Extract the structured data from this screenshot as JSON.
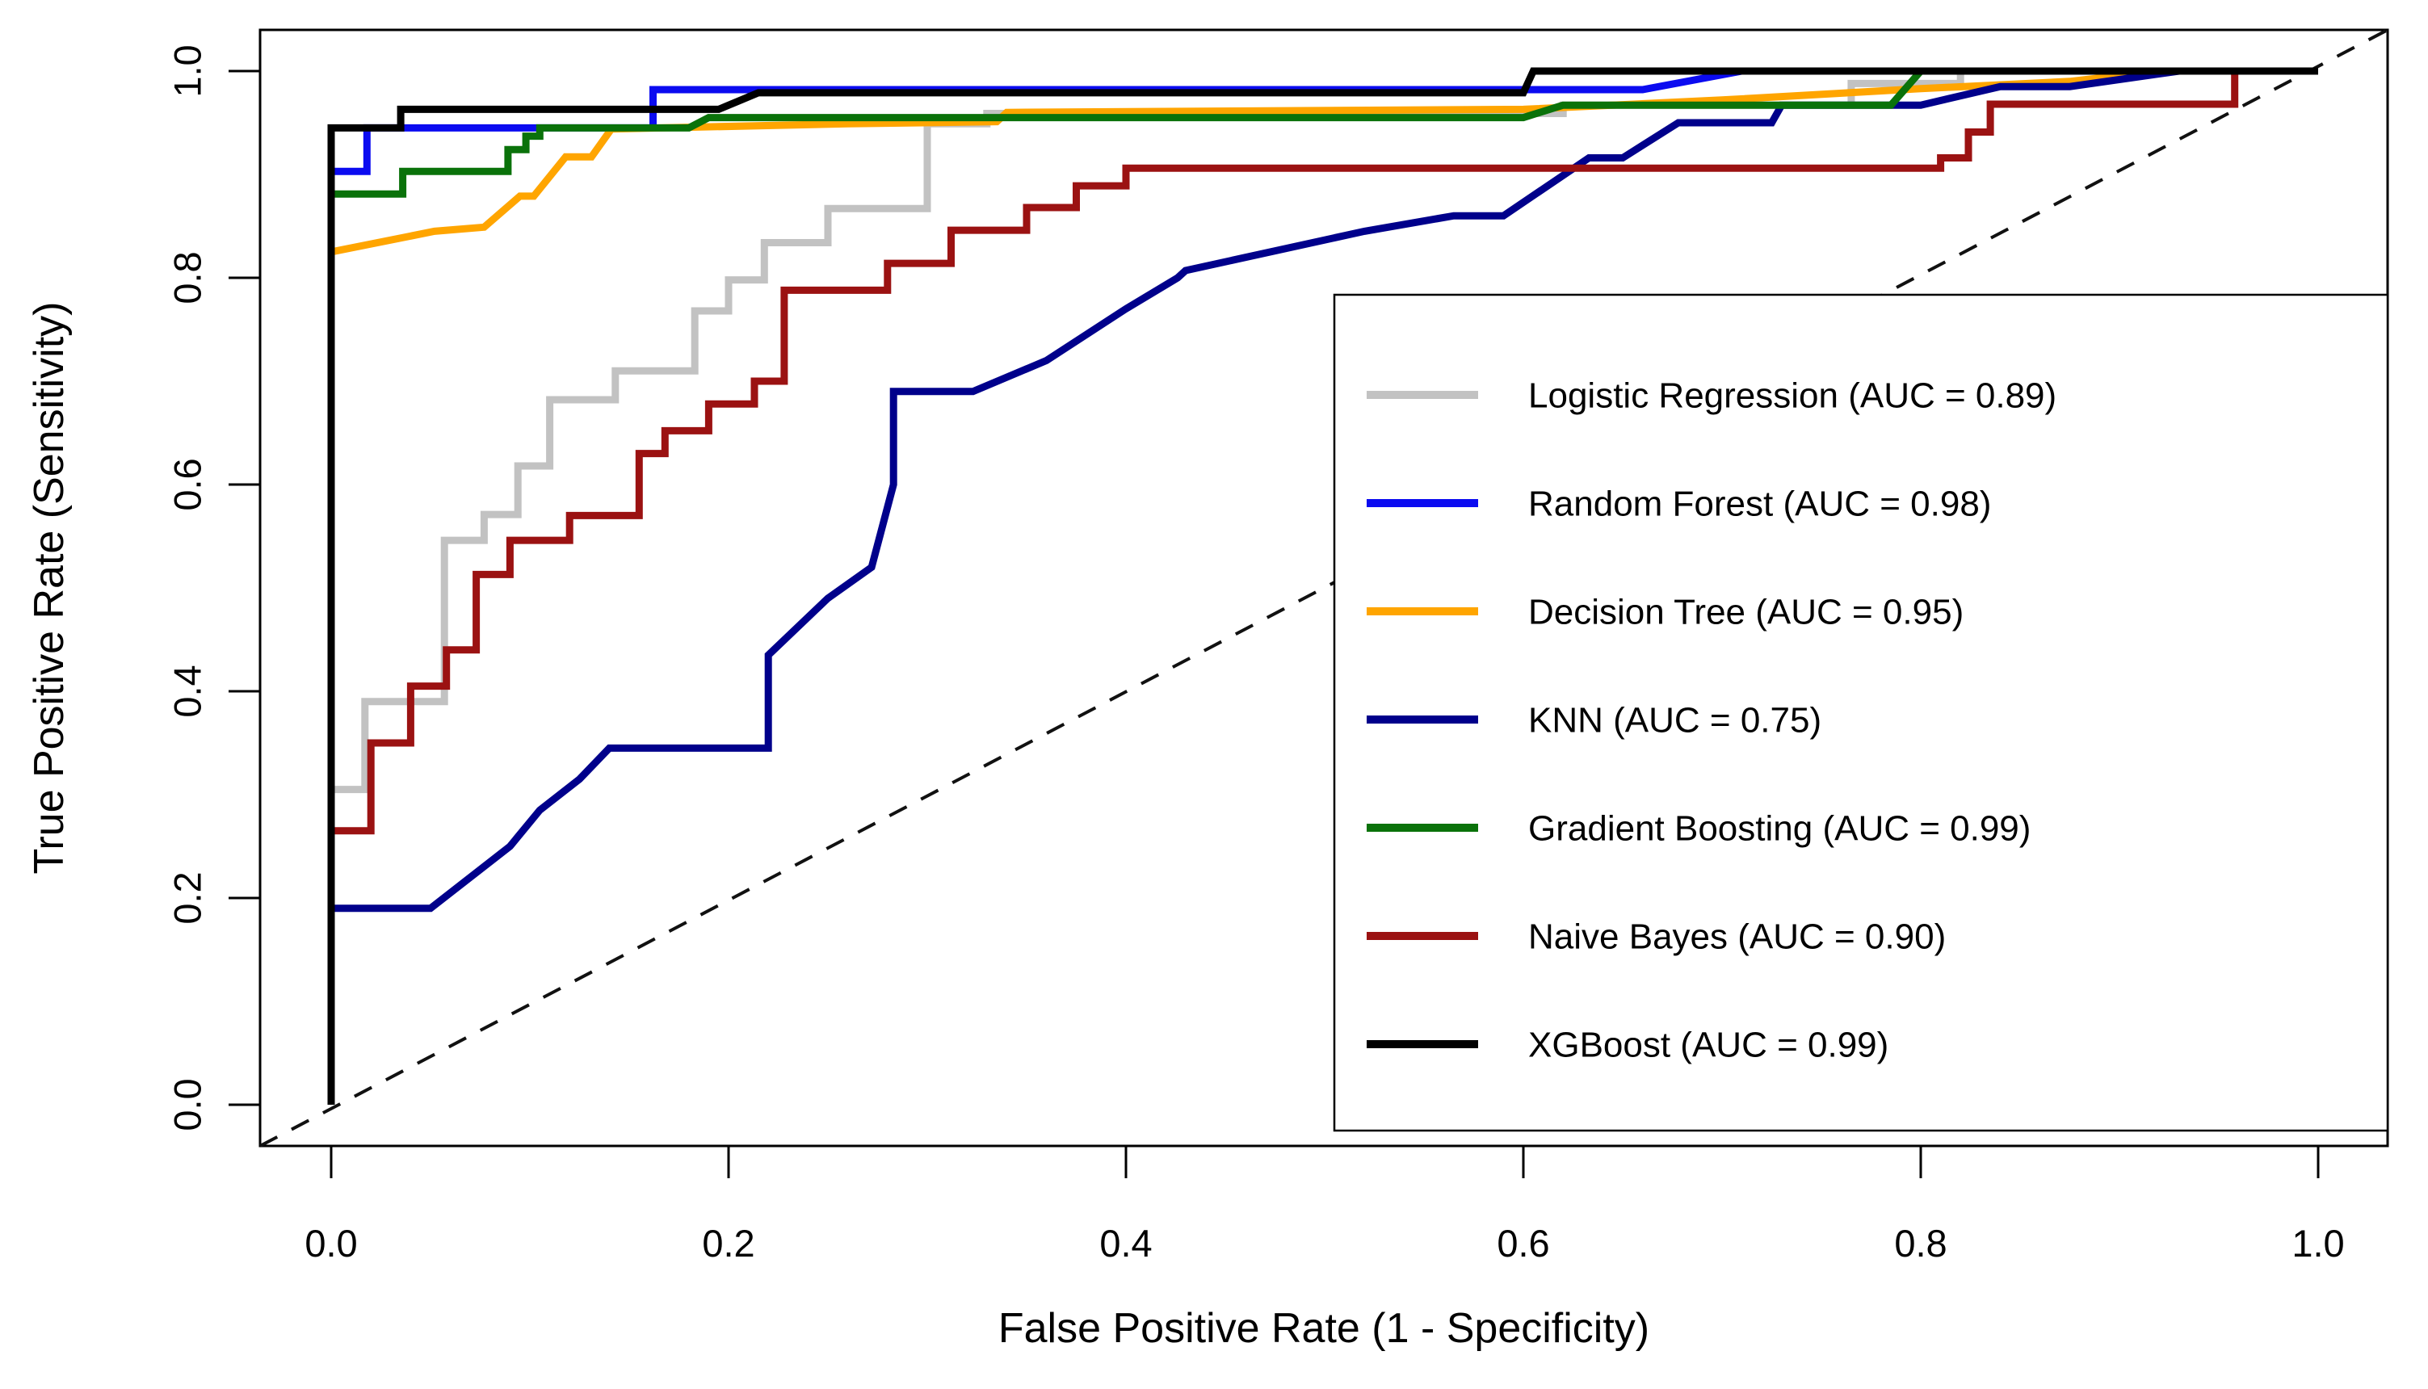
{
  "figure": {
    "background": "#ffffff",
    "axis_color": "#000000",
    "reference_line_style": "dashed"
  },
  "axes": {
    "xlabel": "False Positive Rate (1 - Specificity)",
    "ylabel": "True Positive Rate (Sensitivity)",
    "x_tick_labels": [
      "0.0",
      "0.2",
      "0.4",
      "0.6",
      "0.8",
      "1.0"
    ],
    "y_tick_labels": [
      "0.0",
      "0.2",
      "0.4",
      "0.6",
      "0.8",
      "1.0"
    ],
    "x_tick_values": [
      0,
      0.2,
      0.4,
      0.6,
      0.8,
      1.0
    ],
    "y_tick_values": [
      0,
      0.2,
      0.4,
      0.6,
      0.8,
      1.0
    ]
  },
  "chart_data": {
    "type": "line",
    "title": "",
    "xlabel": "False Positive Rate (1 - Specificity)",
    "ylabel": "True Positive Rate (Sensitivity)",
    "xlim": [
      0,
      1
    ],
    "ylim": [
      0,
      1
    ],
    "grid": false,
    "legend_position": "bottomright",
    "diagonal_reference_line": {
      "from": [
        0,
        0
      ],
      "to": [
        1,
        1
      ],
      "style": "dashed",
      "color": "#111111"
    },
    "series": [
      {
        "name": "Logistic Regression",
        "auc": 0.89,
        "color": "#c2c2c2",
        "points": [
          [
            0,
            0
          ],
          [
            0,
            0.305
          ],
          [
            0.017,
            0.305
          ],
          [
            0.017,
            0.39
          ],
          [
            0.057,
            0.39
          ],
          [
            0.057,
            0.546
          ],
          [
            0.077,
            0.546
          ],
          [
            0.077,
            0.571
          ],
          [
            0.094,
            0.571
          ],
          [
            0.094,
            0.618
          ],
          [
            0.11,
            0.618
          ],
          [
            0.11,
            0.682
          ],
          [
            0.143,
            0.682
          ],
          [
            0.143,
            0.71
          ],
          [
            0.183,
            0.71
          ],
          [
            0.183,
            0.768
          ],
          [
            0.2,
            0.768
          ],
          [
            0.2,
            0.798
          ],
          [
            0.218,
            0.798
          ],
          [
            0.218,
            0.834
          ],
          [
            0.25,
            0.834
          ],
          [
            0.25,
            0.867
          ],
          [
            0.3,
            0.867
          ],
          [
            0.3,
            0.949
          ],
          [
            0.33,
            0.949
          ],
          [
            0.33,
            0.959
          ],
          [
            0.62,
            0.959
          ],
          [
            0.62,
            0.967
          ],
          [
            0.765,
            0.967
          ],
          [
            0.765,
            0.988
          ],
          [
            0.82,
            0.988
          ],
          [
            0.82,
            1
          ],
          [
            1,
            1
          ]
        ]
      },
      {
        "name": "Random Forest",
        "auc": 0.98,
        "color": "#0b0bf0",
        "points": [
          [
            0,
            0
          ],
          [
            0,
            0.903
          ],
          [
            0.018,
            0.903
          ],
          [
            0.018,
            0.945
          ],
          [
            0.162,
            0.945
          ],
          [
            0.162,
            0.982
          ],
          [
            0.66,
            0.982
          ],
          [
            0.71,
            1
          ],
          [
            1,
            1
          ]
        ]
      },
      {
        "name": "Decision Tree",
        "auc": 0.95,
        "color": "#ffa500",
        "points": [
          [
            0,
            0
          ],
          [
            0,
            0.825
          ],
          [
            0.052,
            0.845
          ],
          [
            0.077,
            0.849
          ],
          [
            0.095,
            0.879
          ],
          [
            0.102,
            0.879
          ],
          [
            0.118,
            0.917
          ],
          [
            0.131,
            0.917
          ],
          [
            0.141,
            0.944
          ],
          [
            0.26,
            0.949
          ],
          [
            0.335,
            0.951
          ],
          [
            0.34,
            0.96
          ],
          [
            0.6,
            0.963
          ],
          [
            0.7,
            0.972
          ],
          [
            0.8,
            0.983
          ],
          [
            0.875,
            0.99
          ],
          [
            0.92,
            1
          ],
          [
            1,
            1
          ]
        ]
      },
      {
        "name": "KNN",
        "auc": 0.75,
        "color": "#00008b",
        "points": [
          [
            0,
            0
          ],
          [
            0,
            0.19
          ],
          [
            0.05,
            0.19
          ],
          [
            0.09,
            0.25
          ],
          [
            0.105,
            0.285
          ],
          [
            0.125,
            0.315
          ],
          [
            0.14,
            0.345
          ],
          [
            0.22,
            0.345
          ],
          [
            0.22,
            0.435
          ],
          [
            0.25,
            0.49
          ],
          [
            0.272,
            0.52
          ],
          [
            0.283,
            0.6
          ],
          [
            0.283,
            0.69
          ],
          [
            0.323,
            0.69
          ],
          [
            0.36,
            0.72
          ],
          [
            0.4,
            0.77
          ],
          [
            0.426,
            0.8
          ],
          [
            0.43,
            0.807
          ],
          [
            0.52,
            0.845
          ],
          [
            0.565,
            0.86
          ],
          [
            0.59,
            0.86
          ],
          [
            0.633,
            0.916
          ],
          [
            0.65,
            0.916
          ],
          [
            0.678,
            0.95
          ],
          [
            0.725,
            0.95
          ],
          [
            0.73,
            0.967
          ],
          [
            0.8,
            0.967
          ],
          [
            0.84,
            0.985
          ],
          [
            0.875,
            0.985
          ],
          [
            0.93,
            1
          ],
          [
            1,
            1
          ]
        ]
      },
      {
        "name": "Gradient Boosting",
        "auc": 0.99,
        "color": "#0a720a",
        "points": [
          [
            0,
            0
          ],
          [
            0,
            0.881
          ],
          [
            0.036,
            0.881
          ],
          [
            0.036,
            0.903
          ],
          [
            0.089,
            0.903
          ],
          [
            0.089,
            0.924
          ],
          [
            0.098,
            0.924
          ],
          [
            0.098,
            0.937
          ],
          [
            0.105,
            0.937
          ],
          [
            0.105,
            0.945
          ],
          [
            0.18,
            0.945
          ],
          [
            0.19,
            0.955
          ],
          [
            0.6,
            0.955
          ],
          [
            0.62,
            0.967
          ],
          [
            0.785,
            0.967
          ],
          [
            0.8,
            1
          ],
          [
            1,
            1
          ]
        ]
      },
      {
        "name": "Naive Bayes",
        "auc": 0.9,
        "color": "#9b1212",
        "points": [
          [
            0,
            0
          ],
          [
            0,
            0.265
          ],
          [
            0.02,
            0.265
          ],
          [
            0.02,
            0.35
          ],
          [
            0.04,
            0.35
          ],
          [
            0.04,
            0.405
          ],
          [
            0.058,
            0.405
          ],
          [
            0.058,
            0.44
          ],
          [
            0.073,
            0.44
          ],
          [
            0.073,
            0.513
          ],
          [
            0.09,
            0.513
          ],
          [
            0.09,
            0.546
          ],
          [
            0.12,
            0.546
          ],
          [
            0.12,
            0.57
          ],
          [
            0.155,
            0.57
          ],
          [
            0.155,
            0.63
          ],
          [
            0.168,
            0.63
          ],
          [
            0.168,
            0.652
          ],
          [
            0.19,
            0.652
          ],
          [
            0.19,
            0.678
          ],
          [
            0.213,
            0.678
          ],
          [
            0.213,
            0.7
          ],
          [
            0.228,
            0.7
          ],
          [
            0.228,
            0.788
          ],
          [
            0.28,
            0.788
          ],
          [
            0.28,
            0.814
          ],
          [
            0.312,
            0.814
          ],
          [
            0.312,
            0.846
          ],
          [
            0.35,
            0.846
          ],
          [
            0.35,
            0.868
          ],
          [
            0.375,
            0.868
          ],
          [
            0.375,
            0.889
          ],
          [
            0.4,
            0.889
          ],
          [
            0.4,
            0.906
          ],
          [
            0.81,
            0.906
          ],
          [
            0.81,
            0.916
          ],
          [
            0.824,
            0.916
          ],
          [
            0.824,
            0.941
          ],
          [
            0.835,
            0.941
          ],
          [
            0.835,
            0.968
          ],
          [
            0.958,
            0.968
          ],
          [
            0.958,
            1
          ],
          [
            1,
            1
          ]
        ]
      },
      {
        "name": "XGBoost",
        "auc": 0.99,
        "color": "#000000",
        "points": [
          [
            0,
            0
          ],
          [
            0,
            0.945
          ],
          [
            0.035,
            0.945
          ],
          [
            0.035,
            0.963
          ],
          [
            0.195,
            0.963
          ],
          [
            0.215,
            0.979
          ],
          [
            0.6,
            0.979
          ],
          [
            0.605,
            1
          ],
          [
            1,
            1
          ]
        ]
      }
    ]
  },
  "legend": {
    "items": [
      {
        "label": "Logistic Regression (AUC = 0.89)",
        "color": "#c2c2c2"
      },
      {
        "label": "Random Forest (AUC = 0.98)",
        "color": "#0b0bf0"
      },
      {
        "label": "Decision Tree (AUC = 0.95)",
        "color": "#ffa500"
      },
      {
        "label": "KNN (AUC = 0.75)",
        "color": "#00008b"
      },
      {
        "label": "Gradient Boosting (AUC = 0.99)",
        "color": "#0a720a"
      },
      {
        "label": "Naive Bayes (AUC = 0.90)",
        "color": "#9b1212"
      },
      {
        "label": "XGBoost (AUC = 0.99)",
        "color": "#000000"
      }
    ]
  }
}
